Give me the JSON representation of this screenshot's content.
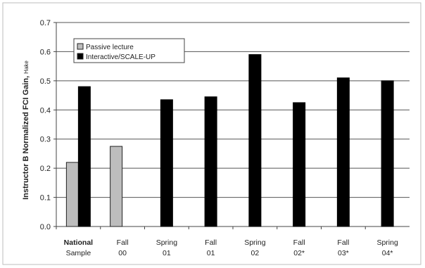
{
  "chart_data": {
    "type": "bar",
    "categories": [
      [
        "National",
        "Sample"
      ],
      [
        "Fall",
        "00"
      ],
      [
        "Spring",
        "01"
      ],
      [
        "Fall",
        "01"
      ],
      [
        "Spring",
        "02"
      ],
      [
        "Fall",
        "02*"
      ],
      [
        "Fall",
        "03*"
      ],
      [
        "Spring",
        "04*"
      ]
    ],
    "series": [
      {
        "name": "Passive lecture",
        "color": "#bdbdbd",
        "values": [
          0.22,
          0.275,
          null,
          null,
          null,
          null,
          null,
          null
        ]
      },
      {
        "name": "Interactive/SCALE-UP",
        "color": "#000000",
        "values": [
          0.48,
          null,
          0.435,
          0.445,
          0.59,
          0.425,
          0.51,
          0.5
        ]
      }
    ],
    "ylabel": "Instructor B Normalized FCI Gain,",
    "ylabel_sub": "Hake",
    "ylim": [
      0,
      0.7
    ],
    "yticks": [
      "0.0",
      "0.1",
      "0.2",
      "0.3",
      "0.4",
      "0.5",
      "0.6",
      "0.7"
    ],
    "grid": true,
    "legend_placement": "top-left"
  }
}
